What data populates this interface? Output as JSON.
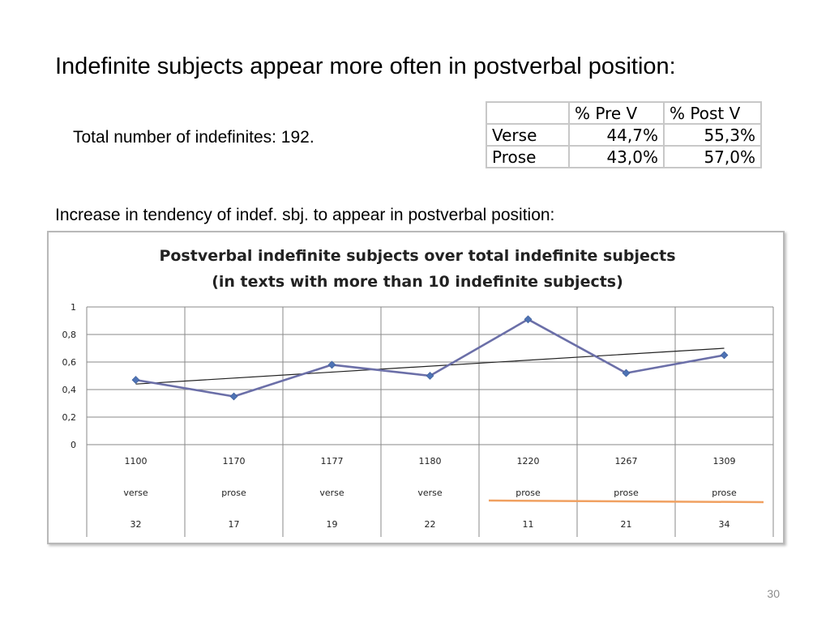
{
  "slide": {
    "title": "Indefinite subjects appear more often in postverbal position:",
    "total_text": "Total number of indefinites: 192.",
    "increase_text": "Increase in tendency of indef. sbj. to appear in postverbal position:",
    "page_number": "30"
  },
  "table": {
    "headers": [
      "",
      "% Pre V",
      "% Post V"
    ],
    "rows": [
      [
        "Verse",
        "44,7%",
        "55,3%"
      ],
      [
        "Prose",
        "43,0%",
        "57,0%"
      ]
    ]
  },
  "chart_data": {
    "type": "line",
    "title_line1": "Postverbal indefinite subjects over total indefinite subjects",
    "title_line2": "(in texts with more than 10 indefinite subjects)",
    "ylim": [
      0,
      1
    ],
    "yticks": [
      0,
      0.2,
      0.4,
      0.6,
      0.8,
      1
    ],
    "ytick_labels": [
      "0",
      "0,2",
      "0,4",
      "0,6",
      "0,8",
      "1"
    ],
    "categories": [
      {
        "year": "1100",
        "genre": "verse",
        "count": "32"
      },
      {
        "year": "1170",
        "genre": "prose",
        "count": "17"
      },
      {
        "year": "1177",
        "genre": "verse",
        "count": "19"
      },
      {
        "year": "1180",
        "genre": "verse",
        "count": "22"
      },
      {
        "year": "1220",
        "genre": "prose",
        "count": "11"
      },
      {
        "year": "1267",
        "genre": "prose",
        "count": "21"
      },
      {
        "year": "1309",
        "genre": "prose",
        "count": "34"
      }
    ],
    "series": [
      {
        "values": [
          0.47,
          0.35,
          0.58,
          0.5,
          0.91,
          0.52,
          0.65
        ],
        "color": "#6b6fa8",
        "marker_color": "#4e73b5"
      }
    ],
    "trendline": {
      "start": 0.44,
      "end": 0.7,
      "color": "#222222"
    },
    "highlight": {
      "from_index": 4,
      "to_index": 6,
      "color": "#f0a060"
    },
    "grid": true,
    "legend": "none"
  }
}
